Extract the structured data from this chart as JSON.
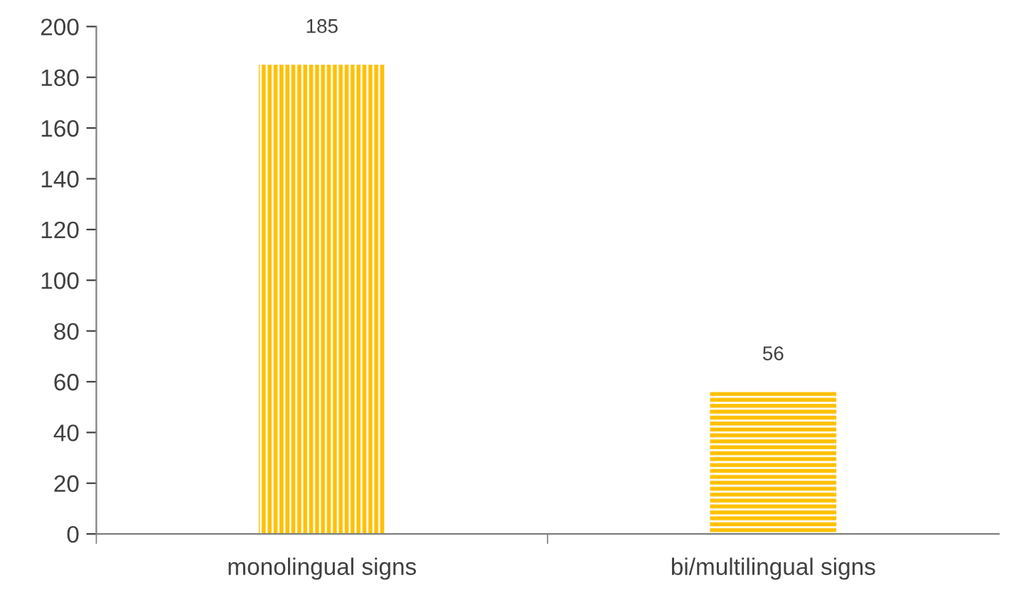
{
  "chart_data": {
    "type": "bar",
    "categories": [
      "monolingual signs",
      "bi/multilingual signs"
    ],
    "values": [
      185,
      56
    ],
    "colors": [
      "#ffc000",
      "#ffc000"
    ],
    "ylim": [
      0,
      200
    ],
    "yticks": [
      0,
      20,
      40,
      60,
      80,
      100,
      120,
      140,
      160,
      180,
      200
    ],
    "data_labels": true,
    "grid": false,
    "legend": false
  }
}
